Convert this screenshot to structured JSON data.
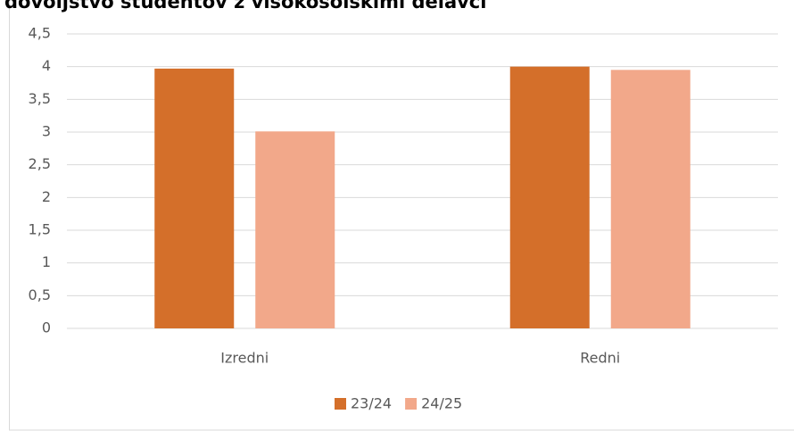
{
  "chart_data": {
    "type": "bar",
    "title": "dovoljstvo študentov z visokošolskimi delavci",
    "categories": [
      "Izredni",
      "Redni"
    ],
    "series": [
      {
        "name": "23/24",
        "color": "#d46f2a",
        "values": [
          3.97,
          4.0
        ]
      },
      {
        "name": "24/25",
        "color": "#f2a88a",
        "values": [
          3.01,
          3.95
        ]
      }
    ],
    "ylim": [
      0,
      4.5
    ],
    "yticks": [
      0,
      {
        "value": 0.5,
        "label": "0,5"
      },
      1,
      {
        "value": 1.5,
        "label": "1,5"
      },
      2,
      {
        "value": 2.5,
        "label": "2,5"
      },
      3,
      {
        "value": 3.5,
        "label": "3,5"
      },
      4,
      {
        "value": 4.5,
        "label": "4,5"
      }
    ],
    "grid": true,
    "legend": "bottom"
  }
}
